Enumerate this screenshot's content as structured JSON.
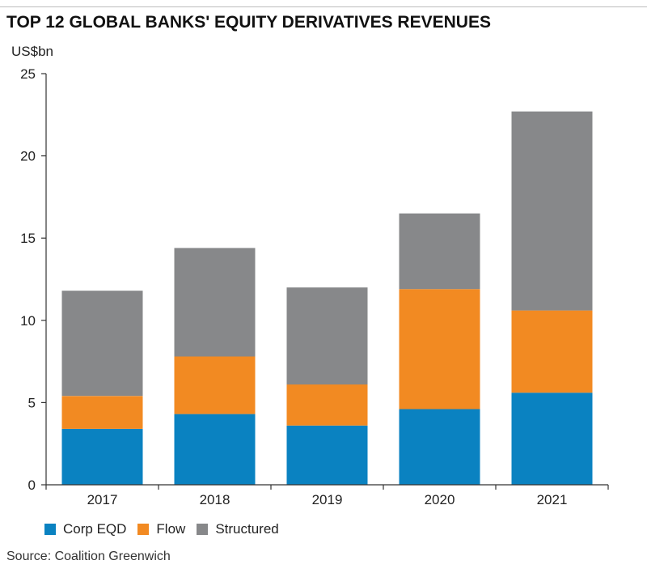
{
  "title": "TOP 12 GLOBAL BANKS' EQUITY DERIVATIVES REVENUES",
  "unit_label": "US$bn",
  "source": "Source: Coalition Greenwich",
  "colors": {
    "corp_eqd": "#0a82c1",
    "flow": "#f28a22",
    "structured": "#87888a",
    "axis": "#333333"
  },
  "chart_data": {
    "type": "bar",
    "stacked": true,
    "categories": [
      "2017",
      "2018",
      "2019",
      "2020",
      "2021"
    ],
    "series": [
      {
        "name": "Corp EQD",
        "values": [
          3.4,
          4.3,
          3.6,
          4.6,
          5.6
        ]
      },
      {
        "name": "Flow",
        "values": [
          2.0,
          3.5,
          2.5,
          7.3,
          5.0
        ]
      },
      {
        "name": "Structured",
        "values": [
          6.4,
          6.6,
          5.9,
          4.6,
          12.1
        ]
      }
    ],
    "ylim": [
      0,
      25
    ],
    "yticks": [
      0,
      5,
      10,
      15,
      20,
      25
    ],
    "ylabel": "US$bn",
    "grid": false,
    "legend": "bottom-left"
  }
}
